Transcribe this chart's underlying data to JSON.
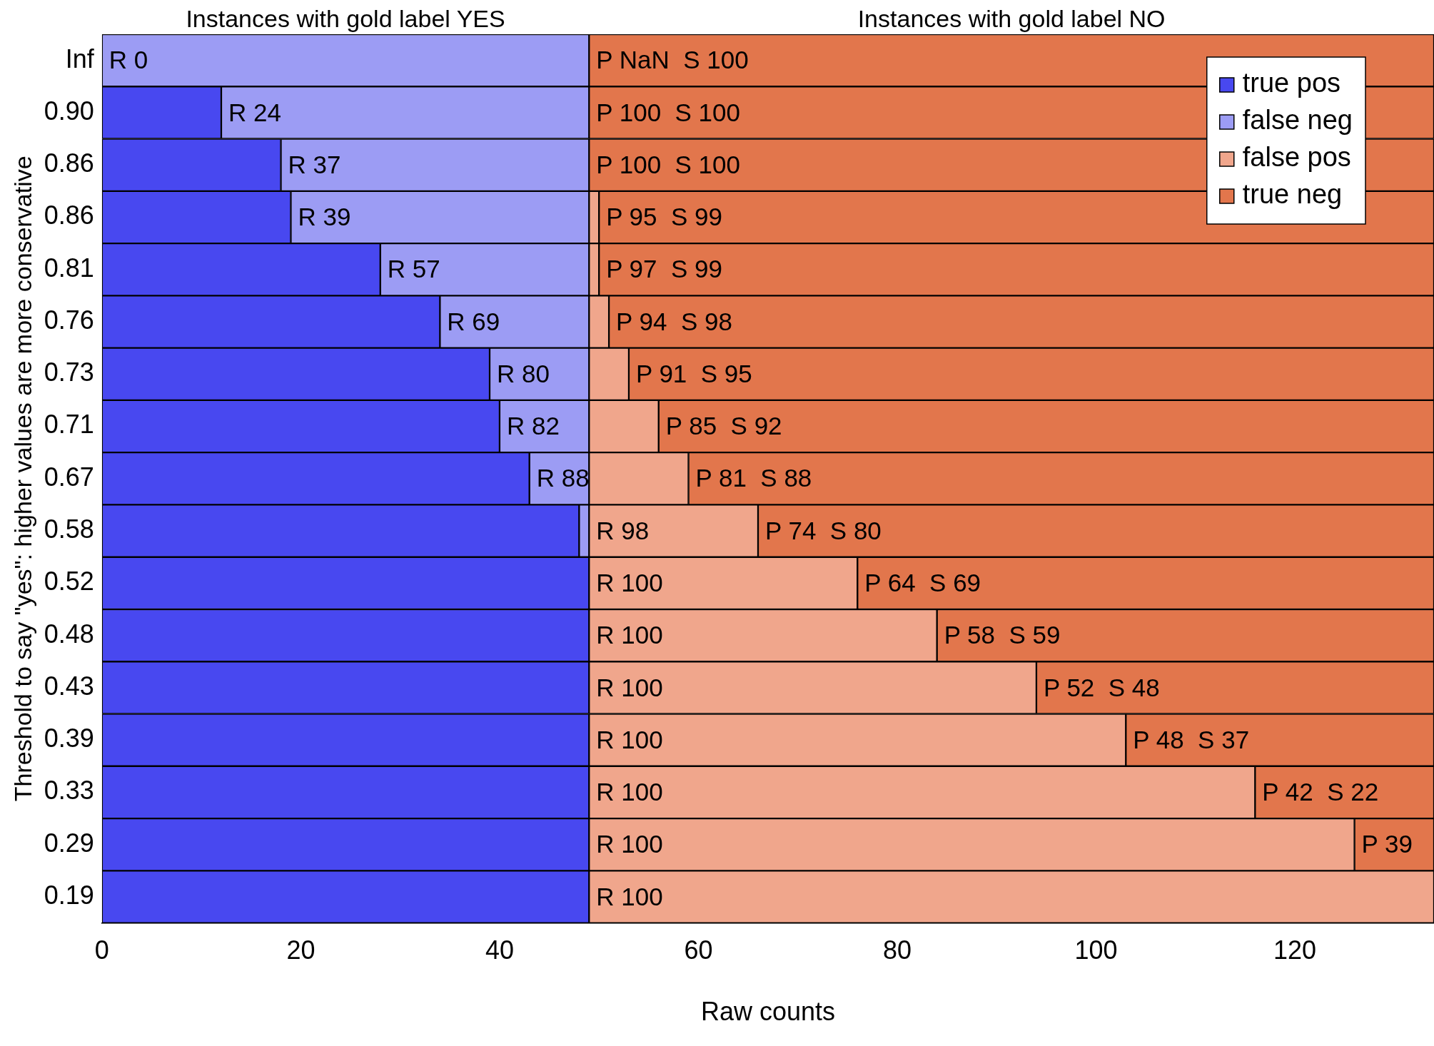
{
  "chart_data": {
    "type": "bar",
    "orientation": "horizontal",
    "stacked": true,
    "xlabel": "Raw counts",
    "ylabel": "Threshold to say \"yes\": higher values are more conservative",
    "annotations": [
      "Instances with gold label YES",
      "Instances with gold label NO"
    ],
    "categories": [
      "Inf",
      "0.90",
      "0.86",
      "0.86",
      "0.81",
      "0.76",
      "0.73",
      "0.71",
      "0.67",
      "0.58",
      "0.52",
      "0.48",
      "0.43",
      "0.39",
      "0.33",
      "0.29",
      "0.19"
    ],
    "series": [
      {
        "name": "true pos",
        "color": "#4848f0",
        "values": [
          0,
          12,
          18,
          19,
          28,
          34,
          39,
          40,
          43,
          48,
          49,
          49,
          49,
          49,
          49,
          49,
          49
        ]
      },
      {
        "name": "false neg",
        "color": "#9c9cf4",
        "values": [
          49,
          37,
          31,
          30,
          21,
          15,
          10,
          9,
          6,
          1,
          0,
          0,
          0,
          0,
          0,
          0,
          0
        ],
        "value_labels": [
          "R 0",
          "R 24",
          "R 37",
          "R 39",
          "R 57",
          "R 69",
          "R 80",
          "R 82",
          "R 88",
          null,
          null,
          null,
          null,
          null,
          null,
          null,
          null
        ]
      },
      {
        "name": "false pos",
        "color": "#f0a68c",
        "values": [
          0,
          0,
          0,
          1,
          1,
          2,
          4,
          7,
          10,
          17,
          27,
          35,
          45,
          54,
          67,
          77,
          85
        ],
        "value_labels": [
          null,
          null,
          null,
          null,
          null,
          null,
          null,
          null,
          null,
          "R 98",
          "R 100",
          "R 100",
          "R 100",
          "R 100",
          "R 100",
          "R 100",
          "R 100"
        ]
      },
      {
        "name": "true neg",
        "color": "#e2764c",
        "values": [
          85,
          85,
          85,
          84,
          84,
          83,
          81,
          78,
          75,
          68,
          58,
          50,
          40,
          31,
          18,
          8,
          0
        ],
        "value_labels": [
          "P NaN  S 100",
          "P 100  S 100",
          "P 100  S 100",
          "P 95  S 99",
          "P 97  S 99",
          "P 94  S 98",
          "P 91  S 95",
          "P 85  S 92",
          "P 81  S 88",
          "P 74  S 80",
          "P 64  S 69",
          "P 58  S 59",
          "P 52  S 48",
          "P 48  S 37",
          "P 42  S 22",
          "P 39",
          null
        ]
      }
    ],
    "xlim": [
      0,
      134
    ],
    "xticks": [
      0,
      20,
      40,
      60,
      80,
      100,
      120
    ],
    "grid": false,
    "legend": "top right"
  }
}
